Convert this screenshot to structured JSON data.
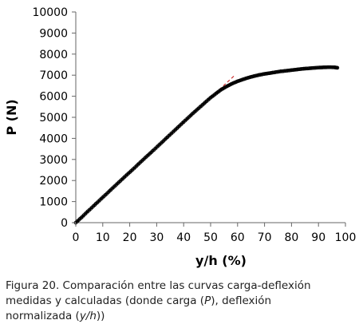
{
  "chart_data": {
    "type": "scatter",
    "xlabel": "y/h (%)",
    "ylabel": "P (N)",
    "xlim": [
      0,
      100
    ],
    "ylim": [
      0,
      10000
    ],
    "xticks": [
      0,
      10,
      20,
      30,
      40,
      50,
      60,
      70,
      80,
      90,
      100
    ],
    "yticks": [
      0,
      1000,
      2000,
      3000,
      4000,
      5000,
      6000,
      7000,
      8000,
      9000,
      10000
    ],
    "grid": false,
    "legend": "none",
    "series": [
      {
        "role": "measured",
        "style": "markers",
        "color": "#000000",
        "x": [
          0,
          2,
          4,
          6,
          8,
          10,
          12,
          14,
          16,
          18,
          20,
          22,
          24,
          26,
          28,
          30,
          32,
          34,
          36,
          38,
          40,
          42,
          44,
          46,
          48,
          50,
          52,
          54,
          56,
          58,
          60,
          62,
          64,
          66,
          68,
          70,
          72,
          74,
          76,
          78,
          80,
          82,
          84,
          86,
          88,
          90,
          92,
          94,
          96,
          97
        ],
        "y": [
          0,
          230,
          480,
          720,
          960,
          1200,
          1440,
          1680,
          1920,
          2160,
          2390,
          2630,
          2870,
          3110,
          3340,
          3580,
          3820,
          4060,
          4300,
          4540,
          4780,
          5020,
          5250,
          5480,
          5710,
          5930,
          6130,
          6320,
          6470,
          6600,
          6710,
          6800,
          6880,
          6950,
          7010,
          7060,
          7100,
          7140,
          7180,
          7210,
          7240,
          7270,
          7300,
          7320,
          7340,
          7360,
          7370,
          7380,
          7370,
          7350
        ]
      },
      {
        "role": "calculated",
        "style": "dashed-line",
        "color": "#cc3333",
        "x": [
          0,
          59
        ],
        "y": [
          0,
          7000
        ]
      }
    ]
  },
  "caption": {
    "line1": "Figura 20. Comparación entre las curvas carga-deflexión",
    "line2a": "medidas y calculadas (donde carga (",
    "line2b": "P",
    "line2c": "), deflexión",
    "line3a": "normalizada (",
    "line3b": "y/h",
    "line3c": "))"
  }
}
